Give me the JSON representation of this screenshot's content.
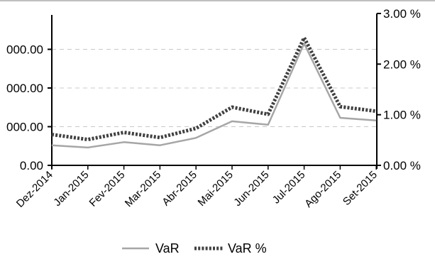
{
  "chart_data": {
    "type": "line",
    "categories": [
      "Dez-2014",
      "Jan-2015",
      "Fev-2015",
      "Mar-2015",
      "Abr-2015",
      "Mai-2015",
      "Jun-2015",
      "Jul-2015",
      "Ago-2015",
      "Set-2015"
    ],
    "left_axis": {
      "ticks": [
        0,
        1000,
        2000,
        3000
      ],
      "tick_labels": [
        "0.00",
        "000.00",
        "000.00",
        "000.00"
      ],
      "range": [
        0,
        4000
      ]
    },
    "right_axis": {
      "ticks": [
        0,
        1,
        2,
        3
      ],
      "tick_labels": [
        "0.00 %",
        "1.00 %",
        "2.00 %",
        "3.00 %"
      ],
      "range": [
        0,
        3
      ]
    },
    "series": [
      {
        "name": "VaR",
        "axis": "left",
        "style": "solid",
        "color": "#a6a6a6",
        "values": [
          520,
          460,
          600,
          520,
          710,
          1140,
          1050,
          3150,
          1230,
          1160
        ]
      },
      {
        "name": "VaR %",
        "axis": "right",
        "style": "dotted",
        "color": "#404040",
        "values": [
          0.61,
          0.51,
          0.65,
          0.55,
          0.73,
          1.15,
          1.01,
          2.52,
          1.16,
          1.07
        ]
      }
    ],
    "grid": "horizontal-dashed",
    "legend_position": "bottom-center"
  }
}
